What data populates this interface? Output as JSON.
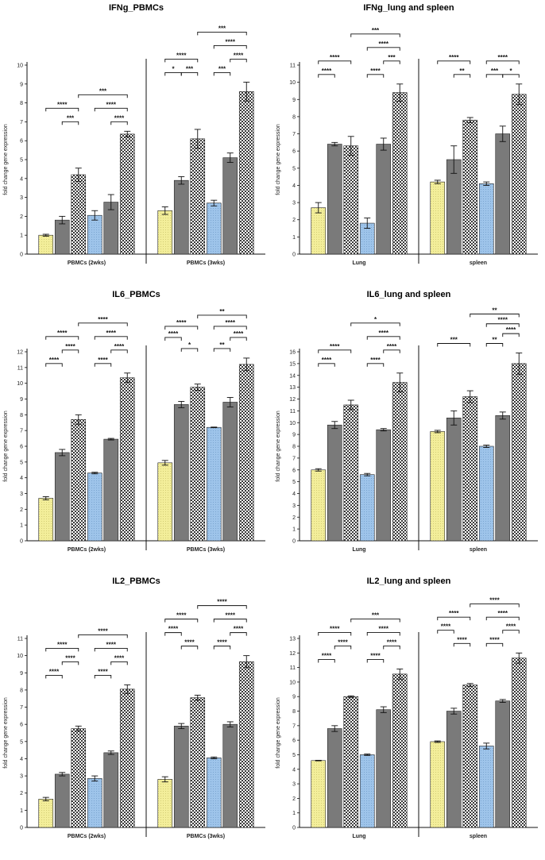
{
  "colors": {
    "yellow": "#f3ee9a",
    "blue": "#9ec4ea",
    "gray": "#7a7a7a",
    "axis": "#111111"
  },
  "chart_data": [
    {
      "type": "bar",
      "title": "IFNg_PBMCs",
      "ylabel": "fold change gene expression",
      "ylim": [
        0,
        10
      ],
      "yticks": [
        0,
        1,
        2,
        3,
        4,
        5,
        6,
        7,
        8,
        9,
        10
      ],
      "groups": [
        {
          "name": "PBMCs (2wks)",
          "values": [
            1.0,
            1.8,
            4.2,
            2.05,
            2.75,
            6.35
          ],
          "errors": [
            0.05,
            0.2,
            0.35,
            0.25,
            0.4,
            0.15
          ]
        },
        {
          "name": "PBMCs (3wks)",
          "values": [
            2.3,
            3.9,
            6.1,
            2.7,
            5.1,
            8.6
          ],
          "errors": [
            0.2,
            0.2,
            0.5,
            0.15,
            0.25,
            0.5
          ]
        }
      ],
      "significance": [
        {
          "group": 0,
          "from": 0,
          "to": 2,
          "label": "****",
          "level": 2
        },
        {
          "group": 0,
          "from": 1,
          "to": 2,
          "label": "***",
          "level": 1
        },
        {
          "group": 0,
          "from": 2,
          "to": 5,
          "label": "***",
          "level": 3
        },
        {
          "group": 0,
          "from": 3,
          "to": 5,
          "label": "****",
          "level": 2
        },
        {
          "group": 0,
          "from": 4,
          "to": 5,
          "label": "****",
          "level": 1
        },
        {
          "group": 1,
          "from": 0,
          "to": 1,
          "label": "*",
          "level": 1
        },
        {
          "group": 1,
          "from": 1,
          "to": 2,
          "label": "***",
          "level": 1
        },
        {
          "group": 1,
          "from": 0,
          "to": 2,
          "label": "****",
          "level": 2
        },
        {
          "group": 1,
          "from": 2,
          "to": 5,
          "label": "***",
          "level": 4
        },
        {
          "group": 1,
          "from": 3,
          "to": 5,
          "label": "****",
          "level": 3
        },
        {
          "group": 1,
          "from": 4,
          "to": 5,
          "label": "****",
          "level": 2
        },
        {
          "group": 1,
          "from": 3,
          "to": 4,
          "label": "***",
          "level": 1
        }
      ]
    },
    {
      "type": "bar",
      "title": "IFNg_lung and spleen",
      "ylabel": "fold change gene expression",
      "ylim": [
        0,
        11
      ],
      "yticks": [
        0,
        1,
        2,
        3,
        4,
        5,
        6,
        7,
        8,
        9,
        10,
        11
      ],
      "groups": [
        {
          "name": "Lung",
          "values": [
            2.7,
            6.4,
            6.3,
            1.8,
            6.4,
            9.4
          ],
          "errors": [
            0.3,
            0.1,
            0.55,
            0.3,
            0.35,
            0.5
          ]
        },
        {
          "name": "spleen",
          "values": [
            4.2,
            5.5,
            7.8,
            4.1,
            7.0,
            9.3
          ],
          "errors": [
            0.1,
            0.8,
            0.15,
            0.1,
            0.45,
            0.6
          ]
        }
      ],
      "significance": [
        {
          "group": 0,
          "from": 0,
          "to": 1,
          "label": "****",
          "level": 1
        },
        {
          "group": 0,
          "from": 0,
          "to": 2,
          "label": "****",
          "level": 2
        },
        {
          "group": 0,
          "from": 3,
          "to": 4,
          "label": "****",
          "level": 1
        },
        {
          "group": 0,
          "from": 4,
          "to": 5,
          "label": "***",
          "level": 2
        },
        {
          "group": 0,
          "from": 3,
          "to": 5,
          "label": "****",
          "level": 3
        },
        {
          "group": 0,
          "from": 2,
          "to": 5,
          "label": "***",
          "level": 4
        },
        {
          "group": 1,
          "from": 0,
          "to": 2,
          "label": "****",
          "level": 2
        },
        {
          "group": 1,
          "from": 1,
          "to": 2,
          "label": "**",
          "level": 1
        },
        {
          "group": 1,
          "from": 3,
          "to": 4,
          "label": "***",
          "level": 1
        },
        {
          "group": 1,
          "from": 4,
          "to": 5,
          "label": "*",
          "level": 1
        },
        {
          "group": 1,
          "from": 3,
          "to": 5,
          "label": "****",
          "level": 2
        }
      ]
    },
    {
      "type": "bar",
      "title": "IL6_PBMCs",
      "ylabel": "fold change gene expression",
      "ylim": [
        0,
        12
      ],
      "yticks": [
        0,
        1,
        2,
        3,
        4,
        5,
        6,
        7,
        8,
        9,
        10,
        11,
        12
      ],
      "groups": [
        {
          "name": "PBMCs (2wks)",
          "values": [
            2.7,
            5.6,
            7.7,
            4.3,
            6.45,
            10.35
          ],
          "errors": [
            0.1,
            0.2,
            0.3,
            0.05,
            0.05,
            0.3
          ]
        },
        {
          "name": "PBMCs (3wks)",
          "values": [
            4.95,
            8.65,
            9.75,
            7.2,
            8.8,
            11.2
          ],
          "errors": [
            0.15,
            0.2,
            0.2,
            0.02,
            0.3,
            0.4
          ]
        }
      ],
      "significance": [
        {
          "group": 0,
          "from": 0,
          "to": 1,
          "label": "****",
          "level": 1
        },
        {
          "group": 0,
          "from": 1,
          "to": 2,
          "label": "****",
          "level": 2
        },
        {
          "group": 0,
          "from": 0,
          "to": 2,
          "label": "****",
          "level": 3
        },
        {
          "group": 0,
          "from": 3,
          "to": 4,
          "label": "****",
          "level": 1
        },
        {
          "group": 0,
          "from": 4,
          "to": 5,
          "label": "****",
          "level": 2
        },
        {
          "group": 0,
          "from": 3,
          "to": 5,
          "label": "****",
          "level": 3
        },
        {
          "group": 0,
          "from": 2,
          "to": 5,
          "label": "****",
          "level": 4
        },
        {
          "group": 1,
          "from": 0,
          "to": 1,
          "label": "****",
          "level": 2
        },
        {
          "group": 1,
          "from": 1,
          "to": 2,
          "label": "*",
          "level": 1
        },
        {
          "group": 1,
          "from": 0,
          "to": 2,
          "label": "****",
          "level": 3
        },
        {
          "group": 1,
          "from": 3,
          "to": 4,
          "label": "**",
          "level": 1
        },
        {
          "group": 1,
          "from": 4,
          "to": 5,
          "label": "****",
          "level": 2
        },
        {
          "group": 1,
          "from": 3,
          "to": 5,
          "label": "****",
          "level": 3
        },
        {
          "group": 1,
          "from": 2,
          "to": 5,
          "label": "**",
          "level": 4
        }
      ]
    },
    {
      "type": "bar",
      "title": "IL6_lung and spleen",
      "ylabel": "fold change gene expression",
      "ylim": [
        0,
        16
      ],
      "yticks": [
        0,
        1,
        2,
        3,
        4,
        5,
        6,
        7,
        8,
        9,
        10,
        11,
        12,
        13,
        14,
        15,
        16
      ],
      "groups": [
        {
          "name": "Lung",
          "values": [
            6.0,
            9.8,
            11.5,
            5.6,
            9.4,
            13.4
          ],
          "errors": [
            0.1,
            0.3,
            0.4,
            0.1,
            0.1,
            0.8
          ]
        },
        {
          "name": "spleen",
          "values": [
            9.25,
            10.4,
            12.2,
            8.0,
            10.6,
            15.0
          ],
          "errors": [
            0.1,
            0.6,
            0.5,
            0.1,
            0.3,
            0.9
          ]
        }
      ],
      "significance": [
        {
          "group": 0,
          "from": 0,
          "to": 1,
          "label": "****",
          "level": 1
        },
        {
          "group": 0,
          "from": 0,
          "to": 2,
          "label": "****",
          "level": 2
        },
        {
          "group": 0,
          "from": 3,
          "to": 4,
          "label": "****",
          "level": 1
        },
        {
          "group": 0,
          "from": 4,
          "to": 5,
          "label": "****",
          "level": 2
        },
        {
          "group": 0,
          "from": 3,
          "to": 5,
          "label": "****",
          "level": 3
        },
        {
          "group": 0,
          "from": 2,
          "to": 5,
          "label": "*",
          "level": 4
        },
        {
          "group": 1,
          "from": 0,
          "to": 2,
          "label": "***",
          "level": 1
        },
        {
          "group": 1,
          "from": 3,
          "to": 4,
          "label": "**",
          "level": 1
        },
        {
          "group": 1,
          "from": 4,
          "to": 5,
          "label": "****",
          "level": 2
        },
        {
          "group": 1,
          "from": 3,
          "to": 5,
          "label": "****",
          "level": 3
        },
        {
          "group": 1,
          "from": 2,
          "to": 5,
          "label": "**",
          "level": 4
        }
      ]
    },
    {
      "type": "bar",
      "title": "IL2_PBMCs",
      "ylabel": "fold change gene expression",
      "ylim": [
        0,
        11
      ],
      "yticks": [
        0,
        1,
        2,
        3,
        4,
        5,
        6,
        7,
        8,
        9,
        10,
        11
      ],
      "groups": [
        {
          "name": "PBMCs (2wks)",
          "values": [
            1.65,
            3.1,
            5.75,
            2.85,
            4.35,
            8.05
          ],
          "errors": [
            0.1,
            0.1,
            0.15,
            0.15,
            0.1,
            0.25
          ]
        },
        {
          "name": "PBMCs (3wks)",
          "values": [
            2.8,
            5.9,
            7.55,
            4.05,
            6.0,
            9.65
          ],
          "errors": [
            0.15,
            0.15,
            0.15,
            0.05,
            0.15,
            0.35
          ]
        }
      ],
      "significance": [
        {
          "group": 0,
          "from": 0,
          "to": 1,
          "label": "****",
          "level": 1
        },
        {
          "group": 0,
          "from": 1,
          "to": 2,
          "label": "****",
          "level": 2
        },
        {
          "group": 0,
          "from": 0,
          "to": 2,
          "label": "****",
          "level": 3
        },
        {
          "group": 0,
          "from": 3,
          "to": 4,
          "label": "****",
          "level": 1
        },
        {
          "group": 0,
          "from": 4,
          "to": 5,
          "label": "****",
          "level": 2
        },
        {
          "group": 0,
          "from": 3,
          "to": 5,
          "label": "****",
          "level": 3
        },
        {
          "group": 0,
          "from": 2,
          "to": 5,
          "label": "****",
          "level": 4
        },
        {
          "group": 1,
          "from": 0,
          "to": 1,
          "label": "****",
          "level": 2
        },
        {
          "group": 1,
          "from": 1,
          "to": 2,
          "label": "****",
          "level": 1
        },
        {
          "group": 1,
          "from": 0,
          "to": 2,
          "label": "****",
          "level": 3
        },
        {
          "group": 1,
          "from": 3,
          "to": 4,
          "label": "****",
          "level": 1
        },
        {
          "group": 1,
          "from": 4,
          "to": 5,
          "label": "****",
          "level": 2
        },
        {
          "group": 1,
          "from": 3,
          "to": 5,
          "label": "****",
          "level": 3
        },
        {
          "group": 1,
          "from": 2,
          "to": 5,
          "label": "****",
          "level": 4
        }
      ]
    },
    {
      "type": "bar",
      "title": "IL2_lung and spleen",
      "ylabel": "fold change gene expression",
      "ylim": [
        0,
        13
      ],
      "yticks": [
        0,
        1,
        2,
        3,
        4,
        5,
        6,
        7,
        8,
        9,
        10,
        11,
        12,
        13
      ],
      "groups": [
        {
          "name": "Lung",
          "values": [
            4.6,
            6.8,
            9.0,
            5.0,
            8.1,
            10.55
          ],
          "errors": [
            0.02,
            0.2,
            0.05,
            0.05,
            0.2,
            0.35
          ]
        },
        {
          "name": "spleen",
          "values": [
            5.9,
            8.0,
            9.8,
            5.6,
            8.7,
            11.65
          ],
          "errors": [
            0.05,
            0.2,
            0.1,
            0.2,
            0.1,
            0.35
          ]
        }
      ],
      "significance": [
        {
          "group": 0,
          "from": 0,
          "to": 1,
          "label": "****",
          "level": 1
        },
        {
          "group": 0,
          "from": 1,
          "to": 2,
          "label": "****",
          "level": 2
        },
        {
          "group": 0,
          "from": 0,
          "to": 2,
          "label": "****",
          "level": 3
        },
        {
          "group": 0,
          "from": 3,
          "to": 4,
          "label": "****",
          "level": 1
        },
        {
          "group": 0,
          "from": 4,
          "to": 5,
          "label": "****",
          "level": 2
        },
        {
          "group": 0,
          "from": 3,
          "to": 5,
          "label": "****",
          "level": 3
        },
        {
          "group": 0,
          "from": 2,
          "to": 5,
          "label": "***",
          "level": 4
        },
        {
          "group": 1,
          "from": 0,
          "to": 1,
          "label": "****",
          "level": 2
        },
        {
          "group": 1,
          "from": 1,
          "to": 2,
          "label": "****",
          "level": 1
        },
        {
          "group": 1,
          "from": 0,
          "to": 2,
          "label": "****",
          "level": 3
        },
        {
          "group": 1,
          "from": 3,
          "to": 4,
          "label": "****",
          "level": 1
        },
        {
          "group": 1,
          "from": 4,
          "to": 5,
          "label": "****",
          "level": 2
        },
        {
          "group": 1,
          "from": 3,
          "to": 5,
          "label": "****",
          "level": 3
        },
        {
          "group": 1,
          "from": 2,
          "to": 5,
          "label": "****",
          "level": 4
        }
      ]
    }
  ]
}
